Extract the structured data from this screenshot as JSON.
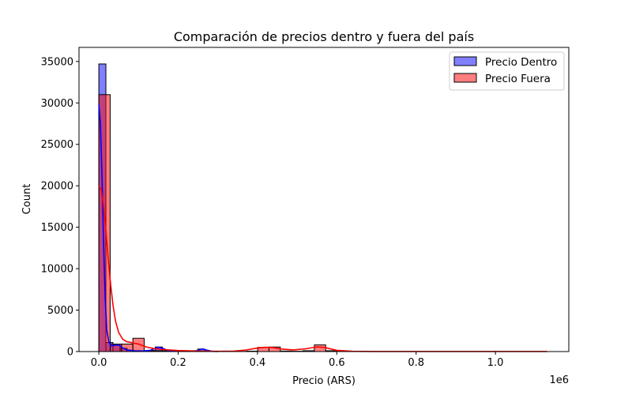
{
  "chart_data": {
    "type": "histogram",
    "title": "Comparación de precios dentro y fuera del país",
    "xlabel": "Precio (ARS)",
    "ylabel": "Count",
    "x_offset_label": "1e6",
    "xlim": [
      -0.05,
      1.185
    ],
    "ylim": [
      0,
      36700
    ],
    "x_ticks": [
      0.0,
      0.2,
      0.4,
      0.6,
      0.8,
      1.0
    ],
    "x_tick_labels": [
      "0.0",
      "0.2",
      "0.4",
      "0.6",
      "0.8",
      "1.0"
    ],
    "y_ticks": [
      0,
      5000,
      10000,
      15000,
      20000,
      25000,
      30000,
      35000
    ],
    "y_tick_labels": [
      "0",
      "5000",
      "10000",
      "15000",
      "20000",
      "25000",
      "30000",
      "35000"
    ],
    "grid": false,
    "legend_position": "top-right",
    "series": [
      {
        "name": "Precio Dentro",
        "color": "#0000ff",
        "bins": [
          {
            "x0": 0.0,
            "x1": 0.0178,
            "count": 34700
          },
          {
            "x0": 0.0178,
            "x1": 0.0356,
            "count": 1100
          },
          {
            "x0": 0.0356,
            "x1": 0.0534,
            "count": 800
          },
          {
            "x0": 0.0534,
            "x1": 0.0712,
            "count": 400
          },
          {
            "x0": 0.0712,
            "x1": 0.089,
            "count": 150
          },
          {
            "x0": 0.089,
            "x1": 0.1068,
            "count": 100
          },
          {
            "x0": 0.1068,
            "x1": 0.1246,
            "count": 80
          },
          {
            "x0": 0.1246,
            "x1": 0.1424,
            "count": 120
          },
          {
            "x0": 0.1424,
            "x1": 0.1602,
            "count": 550
          },
          {
            "x0": 0.1602,
            "x1": 0.178,
            "count": 100
          },
          {
            "x0": 0.178,
            "x1": 0.1958,
            "count": 60
          },
          {
            "x0": 0.1958,
            "x1": 0.2136,
            "count": 50
          },
          {
            "x0": 0.2136,
            "x1": 0.2314,
            "count": 40
          },
          {
            "x0": 0.2314,
            "x1": 0.2492,
            "count": 40
          },
          {
            "x0": 0.2492,
            "x1": 0.267,
            "count": 300
          },
          {
            "x0": 0.267,
            "x1": 0.2848,
            "count": 60
          }
        ],
        "kde": [
          [
            0.0,
            29800
          ],
          [
            0.004,
            27500
          ],
          [
            0.008,
            21000
          ],
          [
            0.012,
            13000
          ],
          [
            0.016,
            6500
          ],
          [
            0.02,
            2600
          ],
          [
            0.025,
            1200
          ],
          [
            0.03,
            700
          ],
          [
            0.04,
            750
          ],
          [
            0.05,
            800
          ],
          [
            0.06,
            450
          ],
          [
            0.07,
            200
          ],
          [
            0.09,
            90
          ],
          [
            0.11,
            70
          ],
          [
            0.13,
            150
          ],
          [
            0.15,
            520
          ],
          [
            0.16,
            400
          ],
          [
            0.175,
            120
          ],
          [
            0.2,
            50
          ],
          [
            0.23,
            40
          ],
          [
            0.25,
            120
          ],
          [
            0.26,
            320
          ],
          [
            0.27,
            200
          ],
          [
            0.285,
            30
          ],
          [
            0.3,
            5
          ]
        ]
      },
      {
        "name": "Precio Fuera",
        "color": "#ff0000",
        "bins": [
          {
            "x0": 0.0,
            "x1": 0.0286,
            "count": 31000
          },
          {
            "x0": 0.0286,
            "x1": 0.0572,
            "count": 900
          },
          {
            "x0": 0.0572,
            "x1": 0.0858,
            "count": 900
          },
          {
            "x0": 0.0858,
            "x1": 0.1144,
            "count": 1600
          },
          {
            "x0": 0.1144,
            "x1": 0.143,
            "count": 100
          },
          {
            "x0": 0.143,
            "x1": 0.1716,
            "count": 100
          },
          {
            "x0": 0.1716,
            "x1": 0.2002,
            "count": 50
          },
          {
            "x0": 0.2002,
            "x1": 0.2288,
            "count": 40
          },
          {
            "x0": 0.2288,
            "x1": 0.2574,
            "count": 30
          },
          {
            "x0": 0.2574,
            "x1": 0.286,
            "count": 20
          },
          {
            "x0": 0.286,
            "x1": 0.3146,
            "count": 10
          },
          {
            "x0": 0.3146,
            "x1": 0.3432,
            "count": 10
          },
          {
            "x0": 0.3432,
            "x1": 0.3718,
            "count": 20
          },
          {
            "x0": 0.3718,
            "x1": 0.4004,
            "count": 50
          },
          {
            "x0": 0.4004,
            "x1": 0.429,
            "count": 500
          },
          {
            "x0": 0.429,
            "x1": 0.4576,
            "count": 550
          },
          {
            "x0": 0.4576,
            "x1": 0.4862,
            "count": 60
          },
          {
            "x0": 0.4862,
            "x1": 0.5148,
            "count": 40
          },
          {
            "x0": 0.5148,
            "x1": 0.5434,
            "count": 100
          },
          {
            "x0": 0.5434,
            "x1": 0.572,
            "count": 800
          },
          {
            "x0": 0.572,
            "x1": 0.6006,
            "count": 100
          },
          {
            "x0": 0.6006,
            "x1": 0.6292,
            "count": 20
          }
        ],
        "kde": [
          [
            0.0,
            20000
          ],
          [
            0.006,
            19500
          ],
          [
            0.012,
            17500
          ],
          [
            0.018,
            14500
          ],
          [
            0.024,
            11000
          ],
          [
            0.03,
            8000
          ],
          [
            0.036,
            5500
          ],
          [
            0.042,
            3700
          ],
          [
            0.05,
            2300
          ],
          [
            0.06,
            1500
          ],
          [
            0.07,
            1200
          ],
          [
            0.08,
            1100
          ],
          [
            0.09,
            1000
          ],
          [
            0.1,
            900
          ],
          [
            0.12,
            550
          ],
          [
            0.14,
            350
          ],
          [
            0.16,
            250
          ],
          [
            0.18,
            180
          ],
          [
            0.2,
            130
          ],
          [
            0.25,
            60
          ],
          [
            0.3,
            30
          ],
          [
            0.34,
            60
          ],
          [
            0.37,
            180
          ],
          [
            0.4,
            420
          ],
          [
            0.42,
            520
          ],
          [
            0.44,
            480
          ],
          [
            0.46,
            300
          ],
          [
            0.49,
            200
          ],
          [
            0.52,
            320
          ],
          [
            0.55,
            560
          ],
          [
            0.57,
            480
          ],
          [
            0.6,
            150
          ],
          [
            0.64,
            30
          ],
          [
            0.7,
            10
          ],
          [
            0.8,
            5
          ],
          [
            1.0,
            5
          ],
          [
            1.13,
            5
          ]
        ]
      }
    ]
  }
}
